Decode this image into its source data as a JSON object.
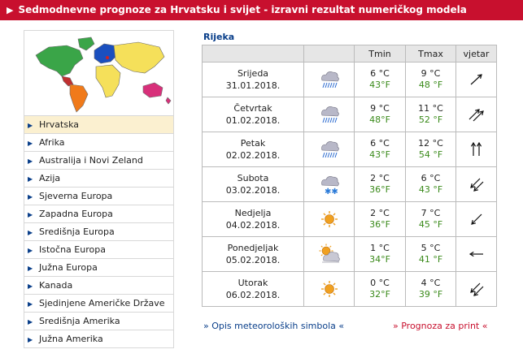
{
  "header": {
    "title": "Sedmodnevne prognoze za Hrvatsku i svijet - izravni rezultat numeričkog modela"
  },
  "regions": [
    "Hrvatska",
    "Afrika",
    "Australija i Novi Zeland",
    "Azija",
    "Sjeverna Europa",
    "Zapadna Europa",
    "Središnja Europa",
    "Istočna Europa",
    "Južna Europa",
    "Kanada",
    "Sjedinjene Američke Države",
    "Središnja Amerika",
    "Južna Amerika"
  ],
  "active_region": "Hrvatska",
  "city": "Rijeka",
  "table": {
    "headers": {
      "day": "",
      "symbol": "",
      "tmin": "Tmin",
      "tmax": "Tmax",
      "wind": "vjetar"
    },
    "rows": [
      {
        "day": "Srijeda",
        "date": "31.01.2018.",
        "symbol": "cloud-rain-icon",
        "tmin_c": "6 °C",
        "tmin_f": "43°F",
        "tmax_c": "9 °C",
        "tmax_f": "48 °F",
        "wind": "arrow-ne-icon"
      },
      {
        "day": "Četvrtak",
        "date": "01.02.2018.",
        "symbol": "cloud-rain-icon",
        "tmin_c": "9 °C",
        "tmin_f": "48°F",
        "tmax_c": "11 °C",
        "tmax_f": "52 °F",
        "wind": "double-arrow-ne-icon"
      },
      {
        "day": "Petak",
        "date": "02.02.2018.",
        "symbol": "cloud-rain-icon",
        "tmin_c": "6 °C",
        "tmin_f": "43°F",
        "tmax_c": "12 °C",
        "tmax_f": "54 °F",
        "wind": "double-arrow-up-icon"
      },
      {
        "day": "Subota",
        "date": "03.02.2018.",
        "symbol": "cloud-snow-icon",
        "tmin_c": "2 °C",
        "tmin_f": "36°F",
        "tmax_c": "6 °C",
        "tmax_f": "43 °F",
        "wind": "double-arrow-sw-icon"
      },
      {
        "day": "Nedjelja",
        "date": "04.02.2018.",
        "symbol": "sun-icon",
        "tmin_c": "2 °C",
        "tmin_f": "36°F",
        "tmax_c": "7 °C",
        "tmax_f": "45 °F",
        "wind": "arrow-sw-icon"
      },
      {
        "day": "Ponedjeljak",
        "date": "05.02.2018.",
        "symbol": "sun-cloud-icon",
        "tmin_c": "1 °C",
        "tmin_f": "34°F",
        "tmax_c": "5 °C",
        "tmax_f": "41 °F",
        "wind": "arrow-w-icon"
      },
      {
        "day": "Utorak",
        "date": "06.02.2018.",
        "symbol": "sun-icon",
        "tmin_c": "0 °C",
        "tmin_f": "32°F",
        "tmax_c": "4 °C",
        "tmax_f": "39 °F",
        "wind": "double-arrow-sw-icon"
      }
    ]
  },
  "links": {
    "symbols": "» Opis meteoroloških simbola «",
    "print": "» Prognoza za print «"
  },
  "colors": {
    "header_bg": "#c8102e",
    "link_blue": "#0a3f8a",
    "fahrenheit_green": "#3a8a1a",
    "active_row": "#fbf0d0"
  }
}
